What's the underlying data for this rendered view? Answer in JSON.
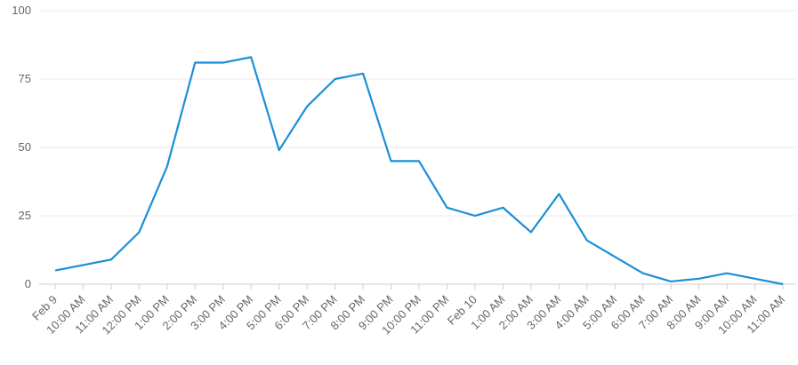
{
  "chart_data": {
    "type": "line",
    "categories": [
      "Feb 9",
      "10:00 AM",
      "11:00 AM",
      "12:00 PM",
      "1:00 PM",
      "2:00 PM",
      "3:00 PM",
      "4:00 PM",
      "5:00 PM",
      "6:00 PM",
      "7:00 PM",
      "8:00 PM",
      "9:00 PM",
      "10:00 PM",
      "11:00 PM",
      "Feb 10",
      "1:00 AM",
      "2:00 AM",
      "3:00 AM",
      "4:00 AM",
      "5:00 AM",
      "6:00 AM",
      "7:00 AM",
      "8:00 AM",
      "9:00 AM",
      "10:00 AM",
      "11:00 AM"
    ],
    "values": [
      5,
      7,
      9,
      19,
      43,
      81,
      81,
      83,
      49,
      65,
      75,
      77,
      45,
      45,
      28,
      25,
      28,
      19,
      33,
      16,
      10,
      4,
      1,
      2,
      4,
      2,
      0
    ],
    "color": "#1a8fd6",
    "ylim": [
      0,
      100
    ],
    "yticks": [
      0,
      25,
      50,
      75,
      100
    ],
    "grid": true
  }
}
